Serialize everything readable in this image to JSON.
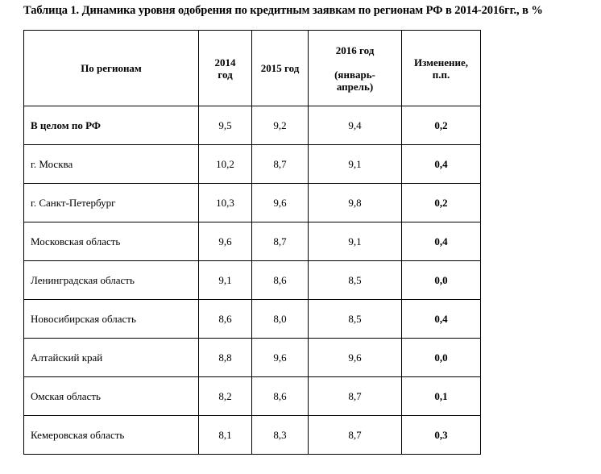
{
  "caption": "Таблица 1. Динамика уровня одобрения по кредитным заявкам по регионам РФ в 2014-2016гг., в %",
  "table": {
    "headers": {
      "region": "По регионам",
      "y2014_line1": "2014",
      "y2014_line2": "год",
      "y2015": "2015 год",
      "y2016_line1": "2016 год",
      "y2016_line2": "(январь-",
      "y2016_line3": "апрель)",
      "change_line1": "Изменение,",
      "change_line2": "п.п."
    },
    "rows": [
      {
        "region": "В целом по РФ",
        "y2014": "9,5",
        "y2015": "9,2",
        "y2016": "9,4",
        "change": "0,2"
      },
      {
        "region": "г. Москва",
        "y2014": "10,2",
        "y2015": "8,7",
        "y2016": "9,1",
        "change": "0,4"
      },
      {
        "region": "г. Санкт-Петербург",
        "y2014": "10,3",
        "y2015": "9,6",
        "y2016": "9,8",
        "change": "0,2"
      },
      {
        "region": "Московская область",
        "y2014": "9,6",
        "y2015": "8,7",
        "y2016": "9,1",
        "change": "0,4"
      },
      {
        "region": "Ленинградская область",
        "y2014": "9,1",
        "y2015": "8,6",
        "y2016": "8,5",
        "change": "0,0"
      },
      {
        "region": "Новосибирская область",
        "y2014": "8,6",
        "y2015": "8,0",
        "y2016": "8,5",
        "change": "0,4"
      },
      {
        "region": "Алтайский край",
        "y2014": "8,8",
        "y2015": "9,6",
        "y2016": "9,6",
        "change": "0,0"
      },
      {
        "region": "Омская область",
        "y2014": "8,2",
        "y2015": "8,6",
        "y2016": "8,7",
        "change": "0,1"
      },
      {
        "region": "Кемеровская область",
        "y2014": "8,1",
        "y2015": "8,3",
        "y2016": "8,7",
        "change": "0,3"
      }
    ]
  }
}
